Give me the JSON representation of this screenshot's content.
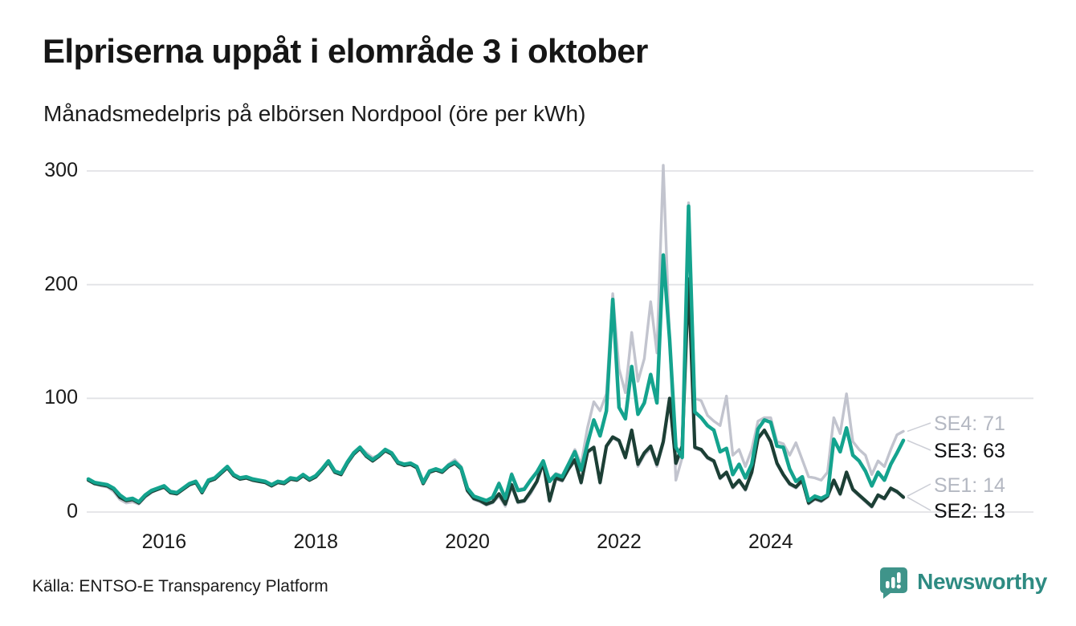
{
  "header": {
    "title": "Elpriserna uppåt i elområde 3 i oktober",
    "subtitle": "Månadsmedelpris på elbörsen Nordpool (öre per kWh)"
  },
  "footer": {
    "source": "Källa: ENTSO-E Transparency Platform",
    "brand": "Newsworthy"
  },
  "colors": {
    "teal_line": "#14a38e",
    "dark_green_line": "#1c3f35",
    "light_gray_line": "#c2c4ce",
    "grid": "#e2e3e6",
    "connector": "#ccced6",
    "label_gray": "#b4b8c2",
    "label_dark": "#121315",
    "brand_teal": "#2e8b82",
    "logo_teal": "#3f948a"
  },
  "chart_data": {
    "type": "line",
    "title": "Elpriserna uppåt i elområde 3 i oktober",
    "subtitle": "Månadsmedelpris på elbörsen Nordpool (öre per kWh)",
    "unit": "öre per kWh",
    "x_start": "2015-01",
    "x_end": "2025-10",
    "x_step": "month",
    "x_ticks": [
      2016,
      2018,
      2020,
      2022,
      2024
    ],
    "y_ticks": [
      0,
      100,
      200,
      300
    ],
    "ylim": [
      0,
      310
    ],
    "grid": true,
    "legend_position": "right-end-labels",
    "series": [
      {
        "name": "SE1",
        "color": "#c2c4ce",
        "line_width": 3.4,
        "end_label": "SE1: 14",
        "end_value": 14,
        "label_color": "#b4b8c2",
        "values": [
          28,
          25,
          23,
          22,
          18,
          11,
          8,
          9,
          7,
          13,
          17,
          20,
          22,
          17,
          16,
          20,
          24,
          26,
          17,
          27,
          29,
          34,
          39,
          32,
          29,
          30,
          28,
          27,
          26,
          23,
          26,
          25,
          29,
          28,
          32,
          28,
          31,
          37,
          44,
          35,
          33,
          43,
          51,
          56,
          49,
          45,
          49,
          54,
          51,
          43,
          41,
          42,
          39,
          25,
          35,
          37,
          35,
          40,
          43,
          38,
          18,
          11,
          9,
          6,
          8,
          14,
          5,
          22,
          8,
          9,
          16,
          26,
          43,
          9,
          29,
          27,
          37,
          45,
          25,
          52,
          56,
          25,
          57,
          65,
          62,
          47,
          70,
          40,
          50,
          56,
          40,
          60,
          98,
          41,
          56,
          203,
          56,
          54,
          47,
          44,
          29,
          34,
          21,
          27,
          19,
          34,
          64,
          71,
          61,
          42,
          32,
          24,
          21,
          27,
          7,
          11,
          9,
          13,
          27,
          15,
          33,
          19,
          14,
          9,
          4,
          14,
          11,
          20,
          17,
          14
        ]
      },
      {
        "name": "SE4",
        "color": "#c2c4ce",
        "line_width": 3.4,
        "end_label": "SE4: 71",
        "end_value": 71,
        "label_color": "#b4b8c2",
        "values": [
          29,
          26,
          25,
          24,
          21,
          14,
          10,
          11,
          8,
          15,
          19,
          21,
          23,
          18,
          17,
          21,
          25,
          27,
          18,
          28,
          30,
          35,
          40,
          33,
          30,
          31,
          29,
          28,
          27,
          24,
          27,
          26,
          30,
          29,
          33,
          29,
          32,
          38,
          45,
          36,
          34,
          44,
          52,
          57,
          52,
          48,
          50,
          55,
          52,
          44,
          42,
          43,
          40,
          26,
          36,
          38,
          36,
          42,
          46,
          40,
          21,
          14,
          12,
          10,
          13,
          26,
          13,
          34,
          20,
          21,
          29,
          36,
          45,
          28,
          34,
          32,
          43,
          55,
          42,
          74,
          97,
          89,
          104,
          192,
          126,
          105,
          158,
          115,
          135,
          185,
          140,
          305,
          150,
          28,
          48,
          272,
          100,
          98,
          85,
          80,
          76,
          102,
          50,
          55,
          40,
          55,
          80,
          83,
          83,
          62,
          60,
          50,
          61,
          46,
          31,
          30,
          28,
          35,
          83,
          69,
          104,
          62,
          55,
          50,
          33,
          45,
          40,
          55,
          68,
          71
        ]
      },
      {
        "name": "SE2",
        "color": "#1c3f35",
        "line_width": 4.2,
        "end_label": "SE2: 13",
        "end_value": 13,
        "label_color": "#121315",
        "values": [
          28,
          25,
          24,
          23,
          20,
          13,
          10,
          11,
          8,
          14,
          18,
          20,
          22,
          17,
          16,
          20,
          24,
          26,
          17,
          27,
          29,
          34,
          39,
          32,
          29,
          30,
          28,
          27,
          26,
          23,
          26,
          25,
          29,
          28,
          32,
          28,
          31,
          37,
          44,
          35,
          33,
          43,
          51,
          56,
          49,
          45,
          49,
          54,
          51,
          43,
          41,
          42,
          39,
          25,
          35,
          37,
          35,
          40,
          43,
          38,
          19,
          12,
          10,
          7,
          9,
          16,
          7,
          24,
          9,
          10,
          18,
          27,
          44,
          10,
          30,
          28,
          38,
          46,
          26,
          53,
          57,
          26,
          58,
          66,
          63,
          48,
          72,
          42,
          52,
          58,
          42,
          62,
          100,
          43,
          58,
          205,
          57,
          55,
          48,
          45,
          30,
          35,
          22,
          28,
          20,
          35,
          65,
          72,
          62,
          43,
          33,
          25,
          22,
          28,
          8,
          12,
          10,
          14,
          28,
          16,
          35,
          20,
          15,
          10,
          5,
          15,
          12,
          21,
          18,
          13
        ]
      },
      {
        "name": "SE3",
        "color": "#14a38e",
        "line_width": 4.5,
        "end_label": "SE3: 63",
        "end_value": 63,
        "label_color": "#121315",
        "values": [
          29,
          26,
          25,
          24,
          21,
          15,
          11,
          12,
          9,
          15,
          19,
          21,
          23,
          18,
          17,
          21,
          25,
          27,
          18,
          28,
          30,
          35,
          40,
          33,
          30,
          31,
          29,
          28,
          27,
          24,
          27,
          26,
          30,
          29,
          33,
          29,
          32,
          38,
          45,
          36,
          34,
          44,
          52,
          57,
          50,
          46,
          50,
          55,
          52,
          44,
          42,
          43,
          40,
          26,
          36,
          38,
          36,
          41,
          44,
          39,
          21,
          14,
          12,
          10,
          13,
          25,
          12,
          33,
          19,
          20,
          28,
          35,
          45,
          27,
          33,
          31,
          42,
          53,
          37,
          60,
          81,
          67,
          89,
          187,
          92,
          82,
          128,
          86,
          96,
          121,
          96,
          226,
          152,
          57,
          48,
          269,
          88,
          83,
          76,
          72,
          53,
          56,
          33,
          42,
          30,
          42,
          73,
          81,
          79,
          58,
          57,
          38,
          27,
          31,
          10,
          14,
          12,
          15,
          64,
          53,
          74,
          50,
          45,
          36,
          23,
          35,
          28,
          42,
          52,
          63
        ]
      }
    ]
  }
}
